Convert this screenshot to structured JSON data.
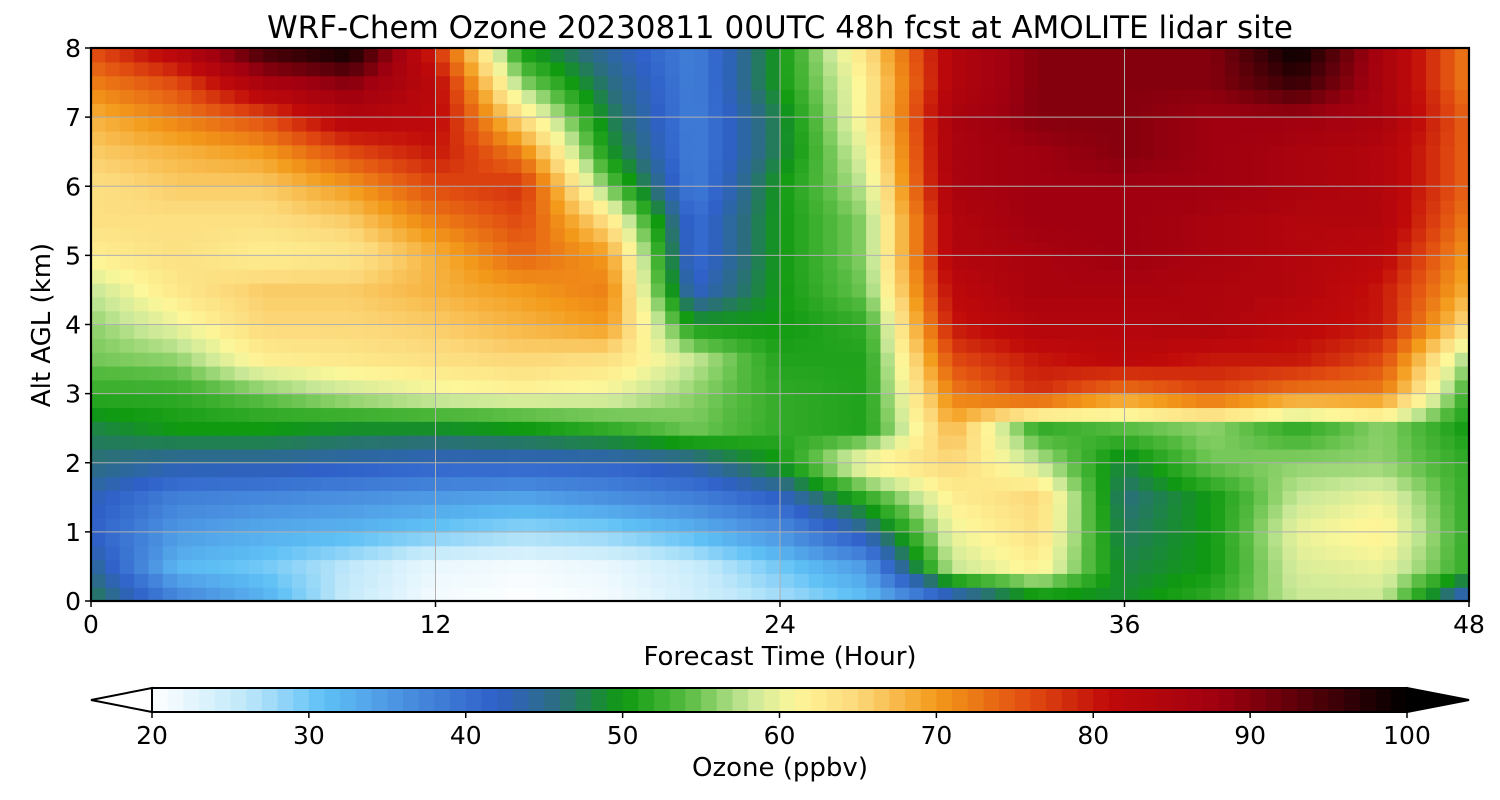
{
  "chart_data": {
    "type": "heatmap",
    "title": "WRF-Chem Ozone  20230811 00UTC 48h fcst at AMOLITE lidar site",
    "xlabel": "Forecast Time (Hour)",
    "ylabel": "Alt AGL (km)",
    "x_ticks": [
      "0",
      "12",
      "24",
      "36",
      "48"
    ],
    "y_ticks": [
      "0",
      "1",
      "2",
      "3",
      "4",
      "5",
      "6",
      "7",
      "8"
    ],
    "xlim": [
      0,
      48
    ],
    "ylim": [
      0,
      8
    ],
    "grid": true,
    "colorbar": {
      "label": "Ozone  (ppbv)",
      "ticks": [
        "20",
        "30",
        "40",
        "50",
        "60",
        "70",
        "80",
        "90",
        "100"
      ],
      "range": [
        20,
        100
      ],
      "extend": "both",
      "color_stops": [
        {
          "v": 20,
          "c": "#ffffff"
        },
        {
          "v": 26,
          "c": "#bfe8fa"
        },
        {
          "v": 31,
          "c": "#5ec0f5"
        },
        {
          "v": 36,
          "c": "#4a90e0"
        },
        {
          "v": 42,
          "c": "#2f60c8"
        },
        {
          "v": 46,
          "c": "#2b6e7c"
        },
        {
          "v": 50,
          "c": "#0f9a10"
        },
        {
          "v": 54,
          "c": "#55bb40"
        },
        {
          "v": 58,
          "c": "#c8e898"
        },
        {
          "v": 61,
          "c": "#fdf79a"
        },
        {
          "v": 65,
          "c": "#fcd87a"
        },
        {
          "v": 70,
          "c": "#f39a1a"
        },
        {
          "v": 76,
          "c": "#e04a10"
        },
        {
          "v": 81,
          "c": "#c00a0a"
        },
        {
          "v": 88,
          "c": "#a00010"
        },
        {
          "v": 94,
          "c": "#500008"
        },
        {
          "v": 100,
          "c": "#000000"
        }
      ]
    },
    "z_grid": {
      "x": [
        0,
        3,
        6,
        9,
        12,
        15,
        18,
        21,
        24,
        27,
        30,
        33,
        36,
        39,
        42,
        45,
        48
      ],
      "y": [
        0,
        0.5,
        1,
        1.5,
        2,
        2.5,
        3,
        3.5,
        4,
        4.5,
        5,
        5.5,
        6,
        6.5,
        7,
        7.5,
        8
      ],
      "z": [
        [
          48,
          38,
          33,
          25,
          21,
          20,
          21,
          24,
          27,
          31,
          40,
          48,
          49,
          52,
          58,
          58,
          40
        ],
        [
          45,
          32,
          30,
          26,
          22,
          21,
          22,
          25,
          30,
          35,
          58,
          62,
          48,
          50,
          59,
          60,
          52
        ],
        [
          42,
          35,
          33,
          32,
          30,
          28,
          29,
          32,
          36,
          44,
          60,
          64,
          47,
          50,
          60,
          62,
          52
        ],
        [
          43,
          38,
          37,
          36,
          35,
          34,
          36,
          38,
          42,
          52,
          62,
          65,
          46,
          50,
          58,
          60,
          52
        ],
        [
          46,
          44,
          44,
          43,
          42,
          42,
          42,
          44,
          50,
          62,
          65,
          58,
          48,
          55,
          56,
          56,
          52
        ],
        [
          48,
          50,
          50,
          49,
          49,
          50,
          52,
          55,
          52,
          51,
          68,
          52,
          54,
          56,
          52,
          56,
          50
        ],
        [
          52,
          52,
          55,
          58,
          60,
          61,
          60,
          56,
          52,
          51,
          72,
          78,
          72,
          76,
          72,
          72,
          52
        ],
        [
          55,
          56,
          62,
          63,
          64,
          65,
          64,
          58,
          51,
          51,
          76,
          80,
          82,
          80,
          80,
          76,
          56
        ],
        [
          56,
          60,
          65,
          65,
          66,
          68,
          70,
          50,
          50,
          52,
          80,
          84,
          84,
          85,
          82,
          80,
          64
        ],
        [
          58,
          63,
          66,
          66,
          68,
          70,
          72,
          42,
          50,
          55,
          82,
          86,
          86,
          85,
          84,
          80,
          68
        ],
        [
          62,
          64,
          62,
          63,
          68,
          74,
          70,
          40,
          50,
          56,
          84,
          86,
          88,
          86,
          84,
          82,
          70
        ],
        [
          64,
          64,
          64,
          66,
          72,
          76,
          64,
          40,
          50,
          56,
          84,
          88,
          88,
          86,
          84,
          84,
          72
        ],
        [
          64,
          66,
          66,
          70,
          76,
          78,
          55,
          38,
          50,
          58,
          86,
          88,
          88,
          88,
          86,
          84,
          74
        ],
        [
          66,
          68,
          70,
          76,
          80,
          72,
          50,
          38,
          48,
          60,
          86,
          88,
          90,
          88,
          86,
          84,
          74
        ],
        [
          68,
          72,
          76,
          84,
          82,
          64,
          48,
          38,
          48,
          62,
          86,
          90,
          90,
          88,
          88,
          86,
          74
        ],
        [
          72,
          76,
          86,
          90,
          82,
          56,
          46,
          38,
          50,
          62,
          84,
          90,
          90,
          90,
          96,
          86,
          72
        ],
        [
          76,
          84,
          96,
          100,
          78,
          50,
          44,
          38,
          50,
          64,
          84,
          90,
          90,
          90,
          100,
          86,
          72
        ]
      ]
    }
  }
}
